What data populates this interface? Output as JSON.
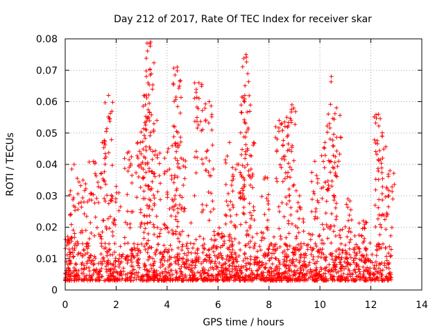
{
  "chart_data": {
    "type": "scatter",
    "title": "Day 212 of 2017, Rate Of TEC Index for receiver skar",
    "xlabel": "GPS time / hours",
    "ylabel": "ROTI / TECUs",
    "xlim": [
      0,
      14
    ],
    "ylim": [
      0,
      0.08
    ],
    "x_ticks": [
      "0",
      "2",
      "4",
      "6",
      "8",
      "10",
      "12",
      "14"
    ],
    "y_ticks": [
      "0",
      "0.01",
      "0.02",
      "0.03",
      "0.04",
      "0.05",
      "0.06",
      "0.07",
      "0.08"
    ],
    "grid": true,
    "marker": "plus",
    "color": "#ff0000",
    "data_extent_x": [
      0.0,
      12.8
    ],
    "series": [
      {
        "name": "ROTI",
        "peaks": [
          {
            "x": 0.1,
            "y": 0.017
          },
          {
            "x": 0.35,
            "y": 0.04
          },
          {
            "x": 0.7,
            "y": 0.035
          },
          {
            "x": 1.1,
            "y": 0.041
          },
          {
            "x": 1.45,
            "y": 0.047
          },
          {
            "x": 1.7,
            "y": 0.062
          },
          {
            "x": 2.0,
            "y": 0.033
          },
          {
            "x": 2.5,
            "y": 0.044
          },
          {
            "x": 2.95,
            "y": 0.047
          },
          {
            "x": 3.15,
            "y": 0.059
          },
          {
            "x": 3.25,
            "y": 0.066
          },
          {
            "x": 3.35,
            "y": 0.079
          },
          {
            "x": 3.6,
            "y": 0.054
          },
          {
            "x": 4.05,
            "y": 0.045
          },
          {
            "x": 4.3,
            "y": 0.052
          },
          {
            "x": 4.4,
            "y": 0.071
          },
          {
            "x": 4.55,
            "y": 0.042
          },
          {
            "x": 5.25,
            "y": 0.066
          },
          {
            "x": 5.65,
            "y": 0.06
          },
          {
            "x": 6.15,
            "y": 0.018
          },
          {
            "x": 6.45,
            "y": 0.047
          },
          {
            "x": 6.75,
            "y": 0.04
          },
          {
            "x": 7.05,
            "y": 0.062
          },
          {
            "x": 7.1,
            "y": 0.075
          },
          {
            "x": 7.4,
            "y": 0.047
          },
          {
            "x": 7.85,
            "y": 0.036
          },
          {
            "x": 8.4,
            "y": 0.054
          },
          {
            "x": 8.7,
            "y": 0.055
          },
          {
            "x": 8.9,
            "y": 0.059
          },
          {
            "x": 9.2,
            "y": 0.03
          },
          {
            "x": 9.8,
            "y": 0.041
          },
          {
            "x": 10.2,
            "y": 0.047
          },
          {
            "x": 10.45,
            "y": 0.068
          },
          {
            "x": 10.65,
            "y": 0.058
          },
          {
            "x": 11.1,
            "y": 0.029
          },
          {
            "x": 11.7,
            "y": 0.022
          },
          {
            "x": 12.3,
            "y": 0.056
          },
          {
            "x": 12.45,
            "y": 0.049
          },
          {
            "x": 12.75,
            "y": 0.038
          }
        ],
        "background_range_y": [
          0.003,
          0.015
        ]
      }
    ]
  }
}
